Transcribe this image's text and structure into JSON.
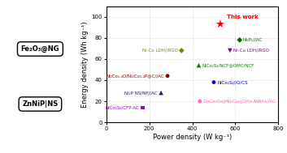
{
  "chart_data": {
    "type": "scatter",
    "xlabel": "Power density (W kg⁻¹)",
    "ylabel": "Energy density (Wh kg⁻¹)",
    "xlim": [
      0,
      800
    ],
    "ylim": [
      0,
      110
    ],
    "xticks": [
      0,
      200,
      400,
      600,
      800
    ],
    "yticks": [
      0,
      20,
      40,
      60,
      80,
      100
    ],
    "grid": true,
    "annotations": [
      "Fe₂O₃@NG",
      "ZnNiP|NS"
    ],
    "points": [
      {
        "label": "This work",
        "x": 530,
        "y": 93,
        "color": "#FF0000",
        "marker": "star"
      },
      {
        "label": "Ni₂P₂//AC",
        "x": 620,
        "y": 78,
        "color": "#006400",
        "marker": "diamond"
      },
      {
        "label": "Ni-Co LDH//RGO",
        "x": 350,
        "y": 68,
        "color": "#808000",
        "marker": "diamond"
      },
      {
        "label": "NiCo₂S₄/NCF@OMC/NCF",
        "x": 430,
        "y": 54,
        "color": "#008000",
        "marker": "triangle_up"
      },
      {
        "label": "Ni₂Co₁.₄O/Ni₂Co₁.₄P@C//AC",
        "x": 285,
        "y": 44,
        "color": "#8B0000",
        "marker": "circle"
      },
      {
        "label": "NiCo₂S₄//G/CS",
        "x": 500,
        "y": 38,
        "color": "#0000CD",
        "marker": "circle"
      },
      {
        "label": "Ni₂P NS/NF//AC",
        "x": 255,
        "y": 28,
        "color": "#191970",
        "marker": "triangle_up"
      },
      {
        "label": "ZnCo₂O₄@Ni₂Co₂(OH)₆ NWAs//AC",
        "x": 435,
        "y": 20,
        "color": "#FF69B4",
        "marker": "circle"
      },
      {
        "label": "NiCo₂S₄/CFP-AC",
        "x": 170,
        "y": 14,
        "color": "#9400D3",
        "marker": "square"
      },
      {
        "label": "Ni-Cu LDH//RGO",
        "x": 575,
        "y": 68,
        "color": "#8B0082",
        "marker": "triangle_down"
      }
    ]
  }
}
